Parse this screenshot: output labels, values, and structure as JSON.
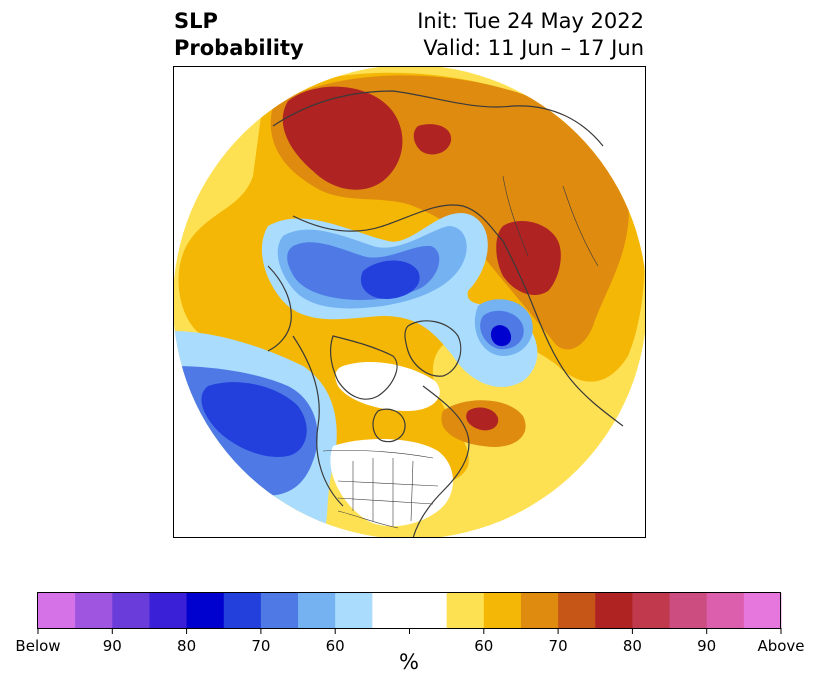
{
  "title": {
    "left_line1": "SLP",
    "left_line2": "Probability",
    "right_line1": "Init: Tue 24 May 2022",
    "right_line2": "Valid: 11 Jun – 17 Jun"
  },
  "colorbar": {
    "unit_label": "%",
    "colors": [
      "#d672e8",
      "#a055e0",
      "#6a3ddb",
      "#3a20d6",
      "#0000cf",
      "#2340dc",
      "#4f7ae6",
      "#74b2f2",
      "#aadcfd",
      "#ffffff",
      "#ffffff",
      "#fde153",
      "#f5b705",
      "#de8b10",
      "#c65617",
      "#b02323",
      "#c1394d",
      "#cc4d7f",
      "#dc5fae",
      "#e677dd"
    ],
    "tick_labels": [
      "Below",
      "90",
      "80",
      "70",
      "60",
      "",
      "60",
      "70",
      "80",
      "90",
      "Above"
    ]
  },
  "map": {
    "projection": "north-polar-stereographic",
    "colors": {
      "above_50": "#fde153",
      "above_60": "#f5b705",
      "above_70": "#de8b10",
      "above_80": "#b02323",
      "below_50": "#aadcfd",
      "below_60": "#74b2f2",
      "below_70": "#4f7ae6",
      "below_80": "#2340dc",
      "below_90": "#0000cf",
      "coast": "#3a3a3a"
    }
  }
}
